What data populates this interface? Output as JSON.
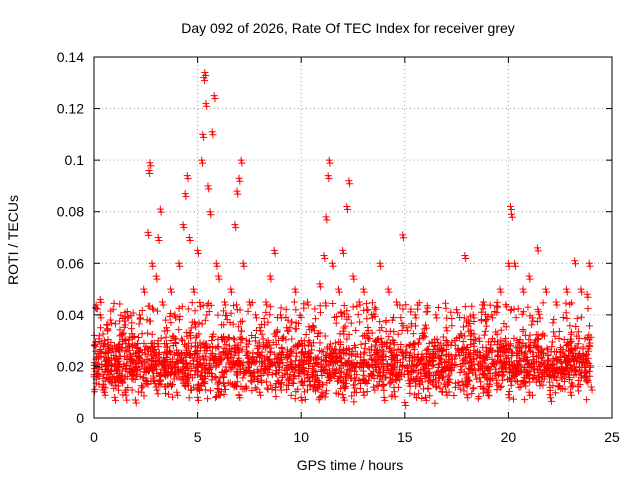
{
  "chart_data": {
    "type": "scatter",
    "title": "Day 092 of 2026, Rate Of TEC Index for receiver grey",
    "xlabel": "GPS time / hours",
    "ylabel": "ROTI / TECUs",
    "xlim": [
      0,
      25
    ],
    "ylim": [
      0,
      0.14
    ],
    "xticks": [
      0,
      5,
      10,
      15,
      20,
      25
    ],
    "xtick_labels": [
      "0",
      "5",
      "10",
      "15",
      "20",
      "25"
    ],
    "yticks": [
      0,
      0.02,
      0.04,
      0.06,
      0.08,
      0.1,
      0.12,
      0.14
    ],
    "ytick_labels": [
      "0",
      "0.02",
      "0.04",
      "0.06",
      "0.08",
      "0.1",
      "0.12",
      "0.14"
    ],
    "grid": true,
    "marker": "plus",
    "color": "#ff0000",
    "series": [
      {
        "name": "ROTI",
        "points": [
          [
            0.1,
            0.018
          ],
          [
            0.2,
            0.025
          ],
          [
            0.3,
            0.04
          ],
          [
            0.3,
            0.046
          ],
          [
            0.4,
            0.012
          ],
          [
            0.5,
            0.03
          ],
          [
            0.6,
            0.02
          ],
          [
            0.8,
            0.038
          ],
          [
            1.0,
            0.015
          ],
          [
            1.2,
            0.022
          ],
          [
            1.5,
            0.03
          ],
          [
            1.8,
            0.018
          ],
          [
            2.0,
            0.025
          ],
          [
            2.2,
            0.04
          ],
          [
            2.4,
            0.05
          ],
          [
            2.6,
            0.072
          ],
          [
            2.65,
            0.096
          ],
          [
            2.7,
            0.099
          ],
          [
            2.8,
            0.06
          ],
          [
            3.0,
            0.055
          ],
          [
            3.1,
            0.07
          ],
          [
            3.2,
            0.081
          ],
          [
            3.3,
            0.045
          ],
          [
            3.5,
            0.035
          ],
          [
            3.7,
            0.05
          ],
          [
            3.9,
            0.04
          ],
          [
            4.1,
            0.06
          ],
          [
            4.3,
            0.075
          ],
          [
            4.4,
            0.087
          ],
          [
            4.5,
            0.094
          ],
          [
            4.6,
            0.07
          ],
          [
            4.8,
            0.05
          ],
          [
            5.0,
            0.065
          ],
          [
            5.2,
            0.1
          ],
          [
            5.25,
            0.11
          ],
          [
            5.3,
            0.132
          ],
          [
            5.35,
            0.134
          ],
          [
            5.4,
            0.122
          ],
          [
            5.5,
            0.09
          ],
          [
            5.6,
            0.08
          ],
          [
            5.7,
            0.111
          ],
          [
            5.8,
            0.125
          ],
          [
            5.9,
            0.06
          ],
          [
            6.0,
            0.055
          ],
          [
            6.3,
            0.045
          ],
          [
            6.6,
            0.05
          ],
          [
            6.8,
            0.075
          ],
          [
            6.9,
            0.088
          ],
          [
            7.0,
            0.093
          ],
          [
            7.1,
            0.1
          ],
          [
            7.2,
            0.06
          ],
          [
            7.5,
            0.045
          ],
          [
            7.8,
            0.04
          ],
          [
            8.0,
            0.035
          ],
          [
            8.3,
            0.045
          ],
          [
            8.5,
            0.055
          ],
          [
            8.7,
            0.065
          ],
          [
            9.0,
            0.04
          ],
          [
            9.3,
            0.035
          ],
          [
            9.7,
            0.05
          ],
          [
            10.0,
            0.03
          ],
          [
            10.3,
            0.045
          ],
          [
            10.6,
            0.035
          ],
          [
            10.9,
            0.052
          ],
          [
            11.1,
            0.063
          ],
          [
            11.2,
            0.078
          ],
          [
            11.3,
            0.094
          ],
          [
            11.35,
            0.1
          ],
          [
            11.5,
            0.06
          ],
          [
            11.8,
            0.05
          ],
          [
            12.0,
            0.065
          ],
          [
            12.2,
            0.082
          ],
          [
            12.3,
            0.092
          ],
          [
            12.5,
            0.055
          ],
          [
            12.8,
            0.045
          ],
          [
            13.0,
            0.05
          ],
          [
            13.4,
            0.04
          ],
          [
            13.8,
            0.06
          ],
          [
            14.2,
            0.05
          ],
          [
            14.6,
            0.045
          ],
          [
            14.9,
            0.071
          ],
          [
            15.1,
            0.035
          ],
          [
            15.5,
            0.04
          ],
          [
            16.0,
            0.036
          ],
          [
            16.5,
            0.04
          ],
          [
            17.0,
            0.035
          ],
          [
            17.5,
            0.042
          ],
          [
            17.9,
            0.063
          ],
          [
            18.3,
            0.04
          ],
          [
            18.8,
            0.045
          ],
          [
            19.2,
            0.04
          ],
          [
            19.6,
            0.05
          ],
          [
            20.0,
            0.06
          ],
          [
            20.1,
            0.082
          ],
          [
            20.15,
            0.079
          ],
          [
            20.3,
            0.06
          ],
          [
            20.7,
            0.05
          ],
          [
            21.0,
            0.055
          ],
          [
            21.4,
            0.066
          ],
          [
            21.8,
            0.05
          ],
          [
            22.3,
            0.045
          ],
          [
            22.8,
            0.05
          ],
          [
            23.2,
            0.061
          ],
          [
            23.5,
            0.05
          ],
          [
            23.8,
            0.048
          ],
          [
            23.9,
            0.06
          ],
          [
            0.5,
            0.01
          ],
          [
            1.0,
            0.008
          ],
          [
            1.5,
            0.01
          ],
          [
            2.0,
            0.007
          ],
          [
            3.0,
            0.012
          ],
          [
            4.0,
            0.01
          ],
          [
            5.0,
            0.008
          ],
          [
            6.0,
            0.01
          ],
          [
            7.0,
            0.009
          ],
          [
            8.0,
            0.01
          ],
          [
            9.0,
            0.012
          ],
          [
            10.0,
            0.008
          ],
          [
            11.0,
            0.01
          ],
          [
            12.0,
            0.009
          ],
          [
            13.0,
            0.01
          ],
          [
            14.0,
            0.008
          ],
          [
            15.0,
            0.006
          ],
          [
            16.0,
            0.008
          ],
          [
            17.0,
            0.01
          ],
          [
            18.0,
            0.009
          ],
          [
            19.0,
            0.01
          ],
          [
            20.0,
            0.009
          ],
          [
            21.0,
            0.01
          ],
          [
            22.0,
            0.009
          ],
          [
            23.0,
            0.01
          ],
          [
            24.0,
            0.012
          ]
        ],
        "dense_band": {
          "x_range": [
            0,
            24
          ],
          "y_range": [
            0.004,
            0.03
          ],
          "description": "continuous dense cloud of points"
        }
      }
    ]
  }
}
